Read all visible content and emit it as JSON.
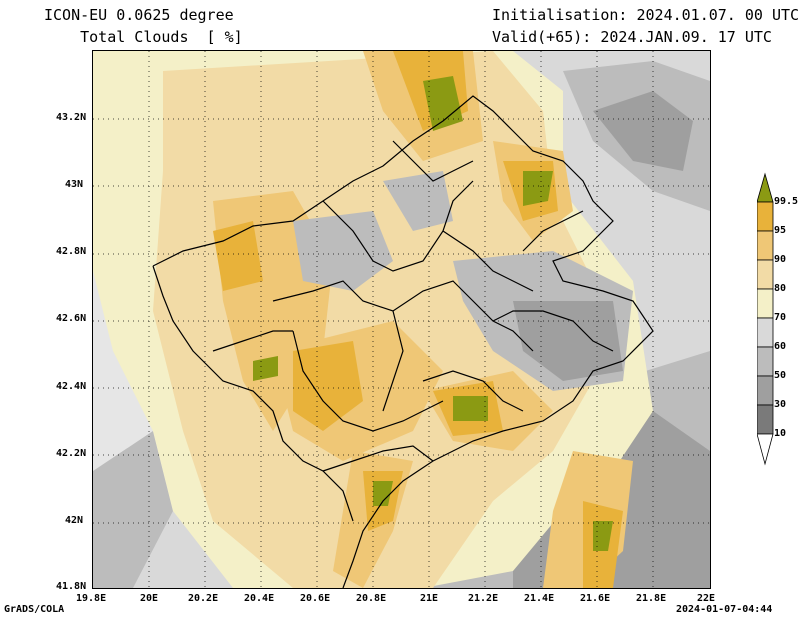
{
  "header": {
    "title_left_line1": "ICON-EU 0.0625 degree",
    "title_left_line2": "    Total Clouds  [ %]",
    "title_right_line1": "Initialisation: 2024.01.07. 00 UTC",
    "title_right_line2": "Valid(+65): 2024.JAN.09. 17 UTC"
  },
  "axes": {
    "x_ticks": [
      "19.8E",
      "20E",
      "20.2E",
      "20.4E",
      "20.6E",
      "20.8E",
      "21E",
      "21.2E",
      "21.4E",
      "21.6E",
      "21.8E",
      "22E"
    ],
    "y_ticks": [
      "43.2N",
      "43N",
      "42.8N",
      "42.6N",
      "42.4N",
      "42.2N",
      "42N",
      "41.8N"
    ]
  },
  "colorbar": {
    "labels": [
      "99.5",
      "95",
      "90",
      "80",
      "70",
      "60",
      "50",
      "30",
      "10"
    ],
    "colors": {
      "c99": "#8b9a13",
      "c95": "#e8b23a",
      "c90": "#efc776",
      "c80": "#f2dba6",
      "c70": "#f4f0c8",
      "c60": "#d9d9d9",
      "c50": "#bcbcbc",
      "c30": "#9f9f9f",
      "c10": "#7a7a7a",
      "c0": "#e6e6e6"
    }
  },
  "footer": {
    "left": "GrADS/COLA",
    "right": "2024-01-07-04:44"
  }
}
